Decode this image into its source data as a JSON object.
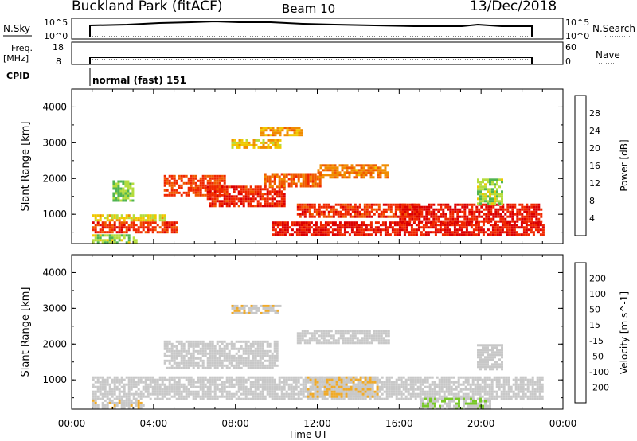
{
  "header": {
    "title": "Buckland Park (fitACF)",
    "beam": "Beam 10",
    "date": "13/Dec/2018"
  },
  "strips": {
    "nsky": {
      "left_label": "N.Sky",
      "left_ticks": [
        "10^5",
        "10^0"
      ],
      "right_ticks": [
        "10^5",
        "10^0"
      ],
      "right_label": "N.Search"
    },
    "freq": {
      "left_label_top": "Freq.",
      "left_label_bottom": "[MHz]",
      "left_ticks": [
        "18",
        "8"
      ],
      "right_ticks": [
        "60",
        "0"
      ],
      "right_label": "Nave"
    },
    "cpid": {
      "label": "CPID",
      "text": "normal (fast) 151"
    }
  },
  "colors": {
    "power": [
      "#2828ff",
      "#28508c",
      "#3c8c3c",
      "#50b450",
      "#b4dc3c",
      "#f0c800",
      "#f08c00",
      "#f05a00",
      "#f02800",
      "#dc0000"
    ],
    "velocity": [
      "#e60000",
      "#f03200",
      "#f07800",
      "#f0aa28",
      "#c8c8c8",
      "#c8c8c8",
      "#78c828",
      "#3c8c3c",
      "#3c5a96",
      "#2828c8"
    ]
  },
  "chart_data": [
    {
      "type": "heatmap",
      "quantity": "Power",
      "ylabel": "Slant Range [km]",
      "ylim": [
        180,
        4500
      ],
      "yticks": [
        "1000",
        "2000",
        "3000",
        "4000"
      ],
      "xlim_hours": [
        0,
        24
      ],
      "colorbar_label": "Power [dB]",
      "colorbar_ticks": [
        "4",
        "8",
        "12",
        "16",
        "20",
        "24",
        "28"
      ],
      "colorbar_range": [
        0,
        32
      ],
      "regions": [
        {
          "t0": 1.0,
          "t1": 5.2,
          "r0": 480,
          "r1": 800,
          "value": 27
        },
        {
          "t0": 1.0,
          "t1": 4.6,
          "r0": 820,
          "r1": 1000,
          "value": 17
        },
        {
          "t0": 1.0,
          "t1": 3.2,
          "r0": 200,
          "r1": 440,
          "value": 14
        },
        {
          "t0": 2.0,
          "t1": 3.0,
          "r0": 1400,
          "r1": 1950,
          "value": 13
        },
        {
          "t0": 4.5,
          "t1": 7.5,
          "r0": 1500,
          "r1": 2100,
          "value": 26
        },
        {
          "t0": 6.6,
          "t1": 10.4,
          "r0": 1200,
          "r1": 1800,
          "value": 28
        },
        {
          "t0": 7.8,
          "t1": 10.2,
          "r0": 2850,
          "r1": 3100,
          "value": 18
        },
        {
          "t0": 9.2,
          "t1": 11.2,
          "r0": 3200,
          "r1": 3450,
          "value": 20
        },
        {
          "t0": 9.4,
          "t1": 12.2,
          "r0": 1750,
          "r1": 2150,
          "value": 24
        },
        {
          "t0": 12.0,
          "t1": 15.5,
          "r0": 2050,
          "r1": 2400,
          "value": 22
        },
        {
          "t0": 11.0,
          "t1": 17.0,
          "r0": 900,
          "r1": 1300,
          "value": 27
        },
        {
          "t0": 9.8,
          "t1": 23.0,
          "r0": 400,
          "r1": 800,
          "value": 29
        },
        {
          "t0": 16.0,
          "t1": 23.0,
          "r0": 800,
          "r1": 1300,
          "value": 29
        },
        {
          "t0": 19.8,
          "t1": 21.0,
          "r0": 1300,
          "r1": 2000,
          "value": 14
        }
      ]
    },
    {
      "type": "heatmap",
      "quantity": "Velocity",
      "xlabel": "Time UT",
      "ylabel": "Slant Range [km]",
      "ylim": [
        180,
        4500
      ],
      "yticks": [
        "1000",
        "2000",
        "3000",
        "4000"
      ],
      "xticks": [
        "00:00",
        "04:00",
        "08:00",
        "12:00",
        "16:00",
        "20:00",
        "00:00"
      ],
      "xlim_hours": [
        0,
        24
      ],
      "colorbar_label": "Velocity [m s^-1]",
      "colorbar_ticks": [
        "-200",
        "-100",
        "-50",
        "-15",
        "15",
        "50",
        "100",
        "200"
      ],
      "colorbar_range": [
        -250,
        250
      ],
      "regions": [
        {
          "t0": 1.0,
          "t1": 23.0,
          "r0": 480,
          "r1": 1100,
          "value": 0
        },
        {
          "t0": 1.0,
          "t1": 3.5,
          "r0": 200,
          "r1": 450,
          "value": -30
        },
        {
          "t0": 4.5,
          "t1": 10.0,
          "r0": 1300,
          "r1": 2100,
          "value": 0
        },
        {
          "t0": 7.8,
          "t1": 10.2,
          "r0": 2850,
          "r1": 3100,
          "value": -40
        },
        {
          "t0": 11.0,
          "t1": 15.5,
          "r0": 2050,
          "r1": 2400,
          "value": 5
        },
        {
          "t0": 11.5,
          "t1": 15.0,
          "r0": 500,
          "r1": 1100,
          "value": -45
        },
        {
          "t0": 17.0,
          "t1": 20.5,
          "r0": 200,
          "r1": 500,
          "value": 40
        },
        {
          "t0": 19.8,
          "t1": 21.0,
          "r0": 1300,
          "r1": 2000,
          "value": 0
        }
      ]
    }
  ]
}
